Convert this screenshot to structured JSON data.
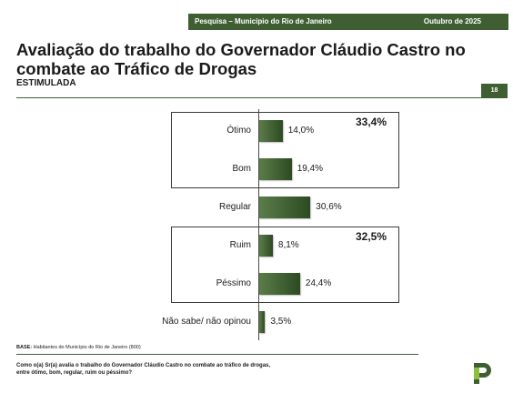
{
  "header": {
    "survey_label": "Pesquisa – Município do Rio de Janeiro",
    "date_label": "Outubro de 2025",
    "page_number": "18"
  },
  "chart_data": {
    "type": "bar",
    "orientation": "horizontal",
    "title": "Avaliação do trabalho do Governador Cláudio Castro no combate ao Tráfico de Drogas",
    "subtitle": "ESTIMULADA",
    "categories": [
      "Ótimo",
      "Bom",
      "Regular",
      "Ruim",
      "Péssimo",
      "Não sabe/ não opinou"
    ],
    "values": [
      14.0,
      19.4,
      30.6,
      8.1,
      24.4,
      3.5
    ],
    "value_labels": [
      "14,0%",
      "19,4%",
      "30,6%",
      "8,1%",
      "24,4%",
      "3,5%"
    ],
    "unit": "%",
    "groups": [
      {
        "categories": [
          "Ótimo",
          "Bom"
        ],
        "total_label": "33,4%"
      },
      {
        "categories": [
          "Ruim",
          "Péssimo"
        ],
        "total_label": "32,5%"
      }
    ],
    "bar_color": "#3f5f33",
    "xlim": [
      0,
      100
    ],
    "grid": false,
    "legend": "none"
  },
  "footer": {
    "base_label": "BASE:",
    "base_text": " Habitantes do Município do Rio de Janeiro (800)",
    "question": "Como o(a) Sr(a) avalia o trabalho do Governador Cláudio Castro no combate ao tráfico de drogas, entre ótimo, bom, regular, ruim ou péssimo?"
  },
  "colors": {
    "brand": "#3f5f33",
    "logo_light": "#8fbf3f"
  },
  "logo": "paraná-pesquisas-logo"
}
